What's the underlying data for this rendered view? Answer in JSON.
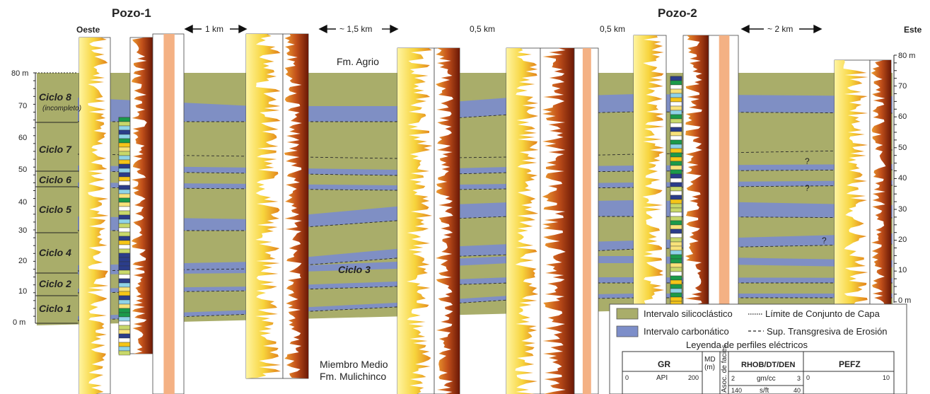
{
  "wells": {
    "well1": "Pozo-1",
    "well2": "Pozo-2"
  },
  "directions": {
    "west": "Oeste",
    "east": "Este"
  },
  "distances": [
    "1 km",
    "~ 1,5 km",
    "0,5 km",
    "0,5 km",
    "~ 2 km"
  ],
  "formations": {
    "agrio": "Fm. Agrio",
    "mulichinco_1": "Miembro Medio",
    "mulichinco_2": "Fm. Mulichinco"
  },
  "left_scale": [
    "80 m",
    "70",
    "60",
    "50",
    "40",
    "30",
    "20",
    "10",
    "0 m"
  ],
  "right_scale": [
    "80 m",
    "70",
    "60",
    "50",
    "40",
    "30",
    "20",
    "10",
    "0 m"
  ],
  "cycles": [
    {
      "name": "Ciclo 8",
      "note": "(incompleto)"
    },
    {
      "name": "Ciclo 7"
    },
    {
      "name": "Ciclo 6"
    },
    {
      "name": "Ciclo 5"
    },
    {
      "name": "Ciclo 4"
    },
    {
      "name": "Ciclo 2"
    },
    {
      "name": "Ciclo 1"
    }
  ],
  "ciclo3": "Ciclo 3",
  "question_marks": [
    "?",
    "?",
    "?"
  ],
  "legend": {
    "siliciclastic": "Intervalo silicoclástico",
    "carbonatic": "Intervalo carbonático",
    "bedset_limit": "Límite de Conjunto de Capa",
    "transgressive": "Sup. Transgresiva de Erosión",
    "logs_title": "Leyenda de perfiles eléctricos",
    "gr": "GR",
    "gr_unit": "API",
    "gr_min": "0",
    "gr_max": "200",
    "md": "MD (m)",
    "facies": "Asoc. de facies",
    "rhob": "RHOB/DT/DEN",
    "rhob_min": "2",
    "rhob_unit": "gm/cc",
    "rhob_max": "3",
    "dt_min": "140",
    "dt_unit": "s/ft",
    "dt_max": "40",
    "pefz": "PEFZ",
    "pefz_min": "0",
    "pefz_max": "10"
  },
  "colors": {
    "siliciclastic": "#a9ad6a",
    "carbonatic": "#7d8ec9",
    "gr_yellow": "#f5d23a",
    "gr_orange": "#e88a1c",
    "dens_dark": "#7a1f08",
    "pefz": "#f4b184"
  }
}
